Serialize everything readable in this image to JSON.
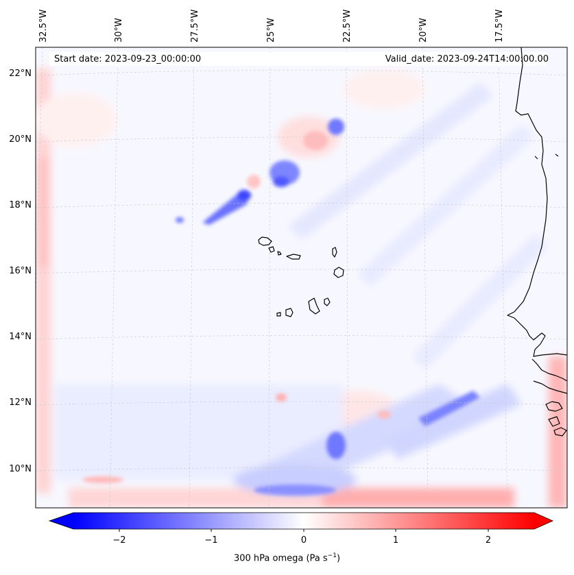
{
  "map": {
    "start_date_text": "Start date: 2023-09-23_00:00:00",
    "valid_date_text": "Valid_date: 2023-09-24T14:00:00.00",
    "lon_labels": [
      "32.5°W",
      "30°W",
      "27.5°W",
      "25°W",
      "22.5°W",
      "20°W",
      "17.5°W"
    ],
    "lat_labels": [
      "22°N",
      "20°N",
      "18°N",
      "16°N",
      "14°N",
      "12°N",
      "10°N"
    ],
    "coastline_color": "#000000",
    "gridline_color": "#c8c8c8"
  },
  "colorbar": {
    "label_text": "300 hPa omega (Pa s",
    "label_exponent": "−1",
    "label_close": ")",
    "ticks": [
      "−2",
      "−1",
      "0",
      "1",
      "2"
    ],
    "tick_values": [
      -2,
      -1,
      0,
      1,
      2
    ],
    "vmin": -2.5,
    "vmax": 2.5,
    "cmap": "bwr",
    "extend": "both",
    "color_low": "#0000ff",
    "color_mid": "#ffffff",
    "color_high": "#ff0000"
  }
}
